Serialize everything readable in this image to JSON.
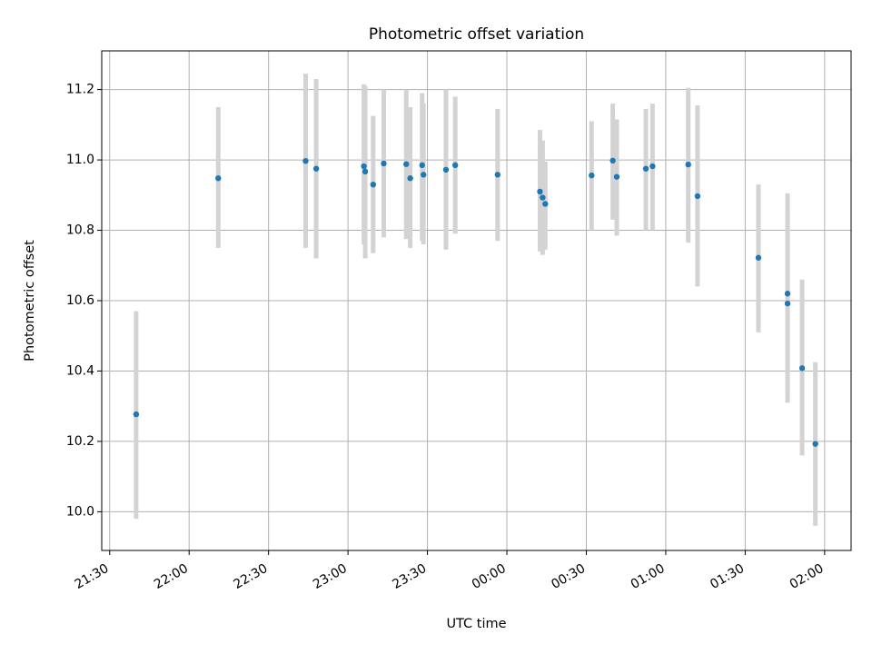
{
  "chart_data": {
    "type": "scatter",
    "title": "Photometric offset variation",
    "xlabel": "UTC time",
    "ylabel": "Photometric offset",
    "x_axis": "time",
    "xlim": [
      "21:27",
      "02:10"
    ],
    "ylim": [
      9.89,
      11.31
    ],
    "x_ticks": [
      "21:30",
      "22:00",
      "22:30",
      "23:00",
      "23:30",
      "00:00",
      "00:30",
      "01:00",
      "01:30",
      "02:00"
    ],
    "y_ticks": [
      10.0,
      10.2,
      10.4,
      10.6,
      10.8,
      11.0,
      11.2
    ],
    "y_tick_labels": [
      "10.0",
      "10.2",
      "10.4",
      "10.6",
      "10.8",
      "11.0",
      "11.2"
    ],
    "grid": true,
    "marker_color": "#1f77b4",
    "errorbar_color": "#d3d3d3",
    "points": [
      {
        "t": "21:40",
        "y": 10.277,
        "lo": 9.98,
        "hi": 10.57
      },
      {
        "t": "22:11",
        "y": 10.948,
        "lo": 10.75,
        "hi": 11.15
      },
      {
        "t": "22:44",
        "y": 10.997,
        "lo": 10.75,
        "hi": 11.245
      },
      {
        "t": "22:48",
        "y": 10.975,
        "lo": 10.72,
        "hi": 11.23
      },
      {
        "t": "23:06",
        "y": 10.982,
        "lo": 10.76,
        "hi": 11.215
      },
      {
        "t": "23:06.5",
        "y": 10.967,
        "lo": 10.72,
        "hi": 11.21
      },
      {
        "t": "23:09.5",
        "y": 10.93,
        "lo": 10.735,
        "hi": 11.125
      },
      {
        "t": "23:13.5",
        "y": 10.99,
        "lo": 10.78,
        "hi": 11.2
      },
      {
        "t": "23:22",
        "y": 10.988,
        "lo": 10.775,
        "hi": 11.2
      },
      {
        "t": "23:23.5",
        "y": 10.948,
        "lo": 10.75,
        "hi": 11.15
      },
      {
        "t": "23:28",
        "y": 10.985,
        "lo": 10.77,
        "hi": 11.19
      },
      {
        "t": "23:28.5",
        "y": 10.958,
        "lo": 10.76,
        "hi": 11.16
      },
      {
        "t": "23:37",
        "y": 10.972,
        "lo": 10.745,
        "hi": 11.2
      },
      {
        "t": "23:40.5",
        "y": 10.985,
        "lo": 10.79,
        "hi": 11.18
      },
      {
        "t": "23:56.5",
        "y": 10.958,
        "lo": 10.77,
        "hi": 11.145
      },
      {
        "t": "00:12.5",
        "y": 10.91,
        "lo": 10.74,
        "hi": 11.085
      },
      {
        "t": "00:13.5",
        "y": 10.893,
        "lo": 10.73,
        "hi": 11.055
      },
      {
        "t": "00:14.5",
        "y": 10.875,
        "lo": 10.745,
        "hi": 10.995
      },
      {
        "t": "00:32",
        "y": 10.956,
        "lo": 10.8,
        "hi": 11.11
      },
      {
        "t": "00:40",
        "y": 10.998,
        "lo": 10.83,
        "hi": 11.16
      },
      {
        "t": "00:41.5",
        "y": 10.952,
        "lo": 10.785,
        "hi": 11.115
      },
      {
        "t": "00:52.5",
        "y": 10.975,
        "lo": 10.8,
        "hi": 11.145
      },
      {
        "t": "00:55",
        "y": 10.982,
        "lo": 10.8,
        "hi": 11.16
      },
      {
        "t": "01:08.5",
        "y": 10.987,
        "lo": 10.765,
        "hi": 11.205
      },
      {
        "t": "01:12",
        "y": 10.897,
        "lo": 10.64,
        "hi": 11.155
      },
      {
        "t": "01:35",
        "y": 10.722,
        "lo": 10.51,
        "hi": 10.93
      },
      {
        "t": "01:46",
        "y": 10.62,
        "lo": 10.335,
        "hi": 10.905
      },
      {
        "t": "01:46",
        "y": 10.592,
        "lo": 10.31,
        "hi": 10.87
      },
      {
        "t": "01:51.5",
        "y": 10.408,
        "lo": 10.16,
        "hi": 10.66
      },
      {
        "t": "01:56.5",
        "y": 10.193,
        "lo": 9.96,
        "hi": 10.425
      }
    ]
  }
}
